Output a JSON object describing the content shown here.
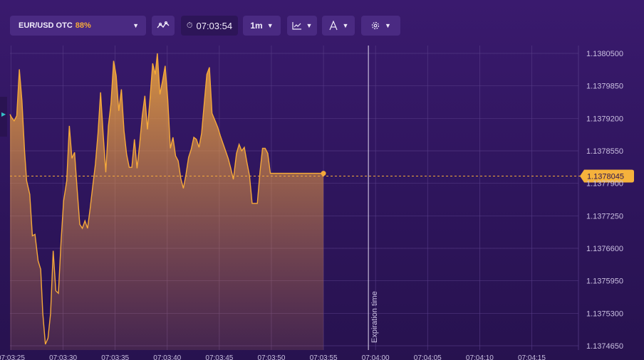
{
  "toolbar": {
    "asset_name": "EUR/USD OTC",
    "payout": "88%",
    "timer": "07:03:54",
    "timeframe": "1m",
    "pair_dropdown_caret": "chevron-down-icon",
    "indicators_icon": "indicators-icon",
    "chart_type_icon": "line-chart-icon",
    "drawing_icon": "drawing-tools-icon",
    "settings_icon": "gear-icon",
    "timer_icon": "stopwatch-icon"
  },
  "colors": {
    "line": "#f5a93a",
    "price_badge_bg": "#f5b23c",
    "background": "#3a1a6e",
    "grid": "#5a3f8a"
  },
  "current_price": "1.1378045",
  "expiration_label": "Expiration time",
  "chart_data": {
    "type": "area",
    "ylim": [
      1.137435,
      1.1381
    ],
    "y_ticks": [
      "1.1380500",
      "1.1379850",
      "1.1379200",
      "1.1378550",
      "1.1377900",
      "1.1377250",
      "1.1376600",
      "1.1375950",
      "1.1375300",
      "1.1374650"
    ],
    "x_ticks": [
      "07:03:25",
      "07:03:30",
      "07:03:35",
      "07:03:40",
      "07:03:45",
      "07:03:50",
      "07:03:55",
      "07:04:00",
      "07:04:05",
      "07:04:10",
      "07:04:15"
    ],
    "expiration_time": "07:04:00",
    "x_start_seconds": 24.9,
    "x": [
      24.9,
      25.05,
      25.3,
      25.55,
      25.8,
      26.05,
      26.3,
      26.5,
      26.8,
      27.05,
      27.3,
      27.6,
      27.85,
      28.05,
      28.3,
      28.55,
      28.8,
      29.05,
      29.3,
      29.55,
      29.8,
      30.05,
      30.35,
      30.6,
      30.85,
      31.1,
      31.35,
      31.6,
      31.85,
      32.1,
      32.35,
      32.6,
      32.85,
      33.1,
      33.35,
      33.6,
      33.85,
      34.1,
      34.35,
      34.6,
      34.85,
      35.1,
      35.35,
      35.6,
      35.85,
      36.1,
      36.35,
      36.6,
      36.85,
      37.1,
      37.35,
      37.6,
      37.85,
      38.1,
      38.35,
      38.6,
      38.85,
      39.05,
      39.3,
      39.55,
      39.8,
      40.05,
      40.3,
      40.55,
      40.8,
      41.05,
      41.3,
      41.55,
      41.8,
      42.05,
      42.3,
      42.55,
      42.8,
      43.05,
      43.3,
      43.55,
      43.8,
      44.05,
      44.3,
      44.6,
      44.85,
      45.1,
      45.35,
      45.6,
      45.85,
      46.1,
      46.35,
      46.65,
      46.9,
      47.15,
      47.4,
      47.65,
      47.9,
      48.15,
      48.4,
      48.65,
      48.9,
      49.15,
      49.4,
      49.65,
      49.9,
      50.15,
      50.5,
      50.8,
      51.15,
      51.5,
      51.85,
      52.2,
      52.55,
      52.9,
      53.15,
      53.4,
      53.65,
      53.9,
      54.2,
      54.5,
      54.8,
      55.0
    ],
    "y": [
      1.137928,
      1.137922,
      1.137915,
      1.137925,
      1.138018,
      1.137955,
      1.137855,
      1.137795,
      1.137768,
      1.137685,
      1.137688,
      1.137635,
      1.137618,
      1.13753,
      1.137468,
      1.13748,
      1.13753,
      1.137655,
      1.137575,
      1.13757,
      1.137672,
      1.137755,
      1.137795,
      1.137905,
      1.13784,
      1.137852,
      1.137778,
      1.137708,
      1.1377,
      1.137715,
      1.1377,
      1.13774,
      1.137785,
      1.137828,
      1.13789,
      1.137972,
      1.137888,
      1.137812,
      1.137905,
      1.13795,
      1.138035,
      1.138005,
      1.137935,
      1.137978,
      1.137895,
      1.137848,
      1.137822,
      1.137822,
      1.137878,
      1.13782,
      1.137868,
      1.137925,
      1.137965,
      1.137898,
      1.13796,
      1.13803,
      1.138008,
      1.13805,
      1.137968,
      1.137995,
      1.138025,
      1.137958,
      1.13786,
      1.137882,
      1.137845,
      1.137835,
      1.1378,
      1.13778,
      1.137808,
      1.137842,
      1.137858,
      1.137882,
      1.137878,
      1.137862,
      1.13789,
      1.13795,
      1.138008,
      1.138022,
      1.13793,
      1.137915,
      1.137902,
      1.137885,
      1.13787,
      1.137855,
      1.13784,
      1.13782,
      1.137798,
      1.13785,
      1.137868,
      1.137855,
      1.137862,
      1.137832,
      1.137805,
      1.13775,
      1.13775,
      1.13775,
      1.137812,
      1.13786,
      1.13786,
      1.13785,
      1.13781,
      1.13781,
      1.13781,
      1.13781,
      1.13781,
      1.13781,
      1.13781,
      1.13781,
      1.13781,
      1.13781,
      1.13781,
      1.13781,
      1.13781,
      1.13781,
      1.13781,
      1.13781,
      1.13781,
      1.13781
    ]
  }
}
